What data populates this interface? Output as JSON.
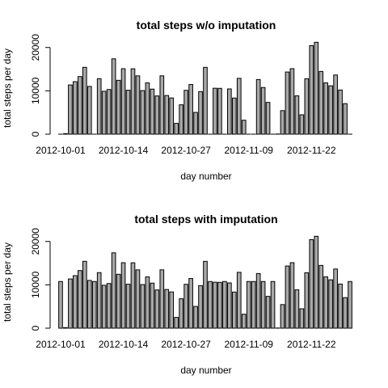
{
  "chart_data": [
    {
      "type": "bar",
      "title": "total steps w/o imputation",
      "xlabel": "day number",
      "ylabel": "total steps per day",
      "ylim": [
        0,
        22000
      ],
      "yticks": [
        0,
        10000,
        20000
      ],
      "xtick_labels": [
        "2012-10-01",
        "2012-10-14",
        "2012-10-27",
        "2012-11-09",
        "2012-11-22"
      ],
      "xtick_positions": [
        1,
        14,
        27,
        40,
        53
      ],
      "categories": [
        "2012-10-01",
        "2012-10-02",
        "2012-10-03",
        "2012-10-04",
        "2012-10-05",
        "2012-10-06",
        "2012-10-07",
        "2012-10-08",
        "2012-10-09",
        "2012-10-10",
        "2012-10-11",
        "2012-10-12",
        "2012-10-13",
        "2012-10-14",
        "2012-10-15",
        "2012-10-16",
        "2012-10-17",
        "2012-10-18",
        "2012-10-19",
        "2012-10-20",
        "2012-10-21",
        "2012-10-22",
        "2012-10-23",
        "2012-10-24",
        "2012-10-25",
        "2012-10-26",
        "2012-10-27",
        "2012-10-28",
        "2012-10-29",
        "2012-10-30",
        "2012-10-31",
        "2012-11-01",
        "2012-11-02",
        "2012-11-03",
        "2012-11-04",
        "2012-11-05",
        "2012-11-06",
        "2012-11-07",
        "2012-11-08",
        "2012-11-09",
        "2012-11-10",
        "2012-11-11",
        "2012-11-12",
        "2012-11-13",
        "2012-11-14",
        "2012-11-15",
        "2012-11-16",
        "2012-11-17",
        "2012-11-18",
        "2012-11-19",
        "2012-11-20",
        "2012-11-21",
        "2012-11-22",
        "2012-11-23",
        "2012-11-24",
        "2012-11-25",
        "2012-11-26",
        "2012-11-27",
        "2012-11-28",
        "2012-11-29",
        "2012-11-30"
      ],
      "values": [
        0,
        126,
        11352,
        12116,
        13294,
        15420,
        11015,
        0,
        12811,
        9900,
        10304,
        17382,
        12426,
        15098,
        10139,
        15084,
        13452,
        10056,
        11829,
        10395,
        8821,
        13460,
        8918,
        8355,
        2492,
        6778,
        10119,
        11458,
        5018,
        9819,
        15414,
        0,
        10600,
        10571,
        0,
        10439,
        8334,
        12883,
        3219,
        0,
        0,
        12608,
        10765,
        7336,
        0,
        41,
        5441,
        14339,
        15110,
        8841,
        4472,
        12787,
        20427,
        21194,
        14478,
        11834,
        11162,
        13646,
        10183,
        7047,
        0
      ]
    },
    {
      "type": "bar",
      "title": "total steps with imputation",
      "xlabel": "day number",
      "ylabel": "total steps per day",
      "ylim": [
        0,
        22000
      ],
      "yticks": [
        0,
        10000,
        20000
      ],
      "xtick_labels": [
        "2012-10-01",
        "2012-10-14",
        "2012-10-27",
        "2012-11-09",
        "2012-11-22"
      ],
      "xtick_positions": [
        1,
        14,
        27,
        40,
        53
      ],
      "categories": [
        "2012-10-01",
        "2012-10-02",
        "2012-10-03",
        "2012-10-04",
        "2012-10-05",
        "2012-10-06",
        "2012-10-07",
        "2012-10-08",
        "2012-10-09",
        "2012-10-10",
        "2012-10-11",
        "2012-10-12",
        "2012-10-13",
        "2012-10-14",
        "2012-10-15",
        "2012-10-16",
        "2012-10-17",
        "2012-10-18",
        "2012-10-19",
        "2012-10-20",
        "2012-10-21",
        "2012-10-22",
        "2012-10-23",
        "2012-10-24",
        "2012-10-25",
        "2012-10-26",
        "2012-10-27",
        "2012-10-28",
        "2012-10-29",
        "2012-10-30",
        "2012-10-31",
        "2012-11-01",
        "2012-11-02",
        "2012-11-03",
        "2012-11-04",
        "2012-11-05",
        "2012-11-06",
        "2012-11-07",
        "2012-11-08",
        "2012-11-09",
        "2012-11-10",
        "2012-11-11",
        "2012-11-12",
        "2012-11-13",
        "2012-11-14",
        "2012-11-15",
        "2012-11-16",
        "2012-11-17",
        "2012-11-18",
        "2012-11-19",
        "2012-11-20",
        "2012-11-21",
        "2012-11-22",
        "2012-11-23",
        "2012-11-24",
        "2012-11-25",
        "2012-11-26",
        "2012-11-27",
        "2012-11-28",
        "2012-11-29",
        "2012-11-30"
      ],
      "values": [
        10766,
        126,
        11352,
        12116,
        13294,
        15420,
        11015,
        10766,
        12811,
        9900,
        10304,
        17382,
        12426,
        15098,
        10139,
        15084,
        13452,
        10056,
        11829,
        10395,
        8821,
        13460,
        8918,
        8355,
        2492,
        6778,
        10119,
        11458,
        5018,
        9819,
        15414,
        10766,
        10600,
        10571,
        10766,
        10439,
        8334,
        12883,
        3219,
        10766,
        10766,
        12608,
        10765,
        7336,
        10766,
        41,
        5441,
        14339,
        15110,
        8841,
        4472,
        12787,
        20427,
        21194,
        14478,
        11834,
        11162,
        13646,
        10183,
        7047,
        10766
      ]
    }
  ]
}
